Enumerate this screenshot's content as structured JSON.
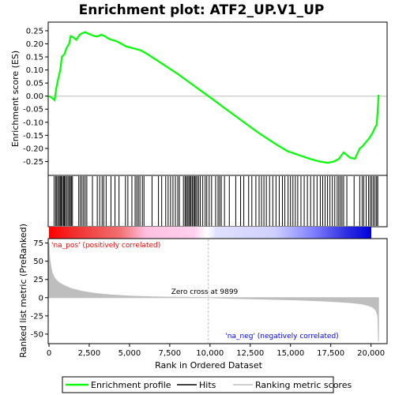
{
  "chart_data": {
    "type": "line",
    "title": "Enrichment plot: ATF2_UP.V1_UP",
    "xlabel": "Rank in Ordered Dataset",
    "ylabel_top": "Enrichment score (ES)",
    "ylabel_bottom": "Ranked list metric (PreRanked)",
    "x_range": [
      0,
      21000
    ],
    "es_ylim": [
      -0.3,
      0.28
    ],
    "metric_ylim": [
      -62,
      80
    ],
    "es_ticks": [
      "0.25",
      "0.20",
      "0.15",
      "0.10",
      "0.05",
      "0.00",
      "-0.05",
      "-0.10",
      "-0.15",
      "-0.20",
      "-0.25"
    ],
    "es_tick_values": [
      0.25,
      0.2,
      0.15,
      0.1,
      0.05,
      0.0,
      -0.05,
      -0.1,
      -0.15,
      -0.2,
      -0.25
    ],
    "metric_ticks": [
      "75",
      "50",
      "25",
      "0",
      "-25",
      "-50"
    ],
    "metric_tick_values": [
      75,
      50,
      25,
      0,
      -25,
      -50
    ],
    "x_ticks": [
      "0",
      "2,500",
      "5,000",
      "7,500",
      "10,000",
      "12,500",
      "15,000",
      "17,500",
      "20,000"
    ],
    "x_tick_values": [
      0,
      2500,
      5000,
      7500,
      10000,
      12500,
      15000,
      17500,
      20000
    ],
    "enrichment_profile": {
      "x": [
        0,
        150,
        350,
        450,
        550,
        700,
        800,
        950,
        1100,
        1250,
        1350,
        1500,
        1700,
        1900,
        2050,
        2250,
        2400,
        2600,
        2800,
        3000,
        3250,
        3450,
        3700,
        3900,
        4200,
        4500,
        4800,
        5100,
        5400,
        5700,
        6000,
        7000,
        8000,
        9000,
        9899,
        11000,
        12000,
        13000,
        14000,
        14800,
        15500,
        16200,
        16800,
        17300,
        17700,
        18000,
        18300,
        18500,
        18700,
        19000,
        19300,
        19500,
        19700,
        19900,
        20100,
        20250,
        20350,
        20420,
        20470
      ],
      "y": [
        0.0,
        -0.005,
        -0.015,
        0.03,
        0.06,
        0.1,
        0.15,
        0.16,
        0.185,
        0.2,
        0.23,
        0.225,
        0.215,
        0.235,
        0.24,
        0.245,
        0.24,
        0.235,
        0.23,
        0.228,
        0.235,
        0.23,
        0.22,
        0.215,
        0.21,
        0.2,
        0.19,
        0.185,
        0.18,
        0.175,
        0.165,
        0.125,
        0.085,
        0.04,
        0.0,
        -0.05,
        -0.095,
        -0.14,
        -0.18,
        -0.21,
        -0.225,
        -0.24,
        -0.25,
        -0.255,
        -0.25,
        -0.24,
        -0.215,
        -0.225,
        -0.235,
        -0.24,
        -0.2,
        -0.19,
        -0.175,
        -0.16,
        -0.14,
        -0.12,
        -0.11,
        -0.05,
        0.005
      ]
    },
    "metric_profile": {
      "x": [
        0,
        40,
        100,
        200,
        350,
        500,
        700,
        1000,
        1400,
        2000,
        2800,
        3800,
        5000,
        6500,
        8000,
        9000,
        9899,
        11000,
        12500,
        14000,
        15500,
        17000,
        18000,
        18800,
        19400,
        19800,
        20100,
        20300,
        20420,
        20470
      ],
      "y": [
        75,
        55,
        45,
        34,
        27,
        23,
        19.5,
        16,
        12.5,
        9,
        6,
        3.8,
        2.2,
        1.2,
        0.6,
        0.3,
        0,
        -0.8,
        -1.6,
        -2.4,
        -3.3,
        -4.5,
        -5.7,
        -7,
        -8.5,
        -10.5,
        -13,
        -17,
        -25,
        -60
      ]
    },
    "hits_positive_side": [
      320,
      420,
      480,
      560,
      640,
      700,
      760,
      830,
      900,
      950,
      1010,
      1100,
      1180,
      1260,
      1330,
      1390,
      1460,
      1850,
      1950,
      2050,
      2150,
      2250,
      2350,
      2700,
      3000,
      3150,
      3300,
      3400,
      3550,
      3850,
      4100,
      4350,
      4750,
      4900,
      5150,
      5350,
      5450,
      5550,
      5650,
      5800,
      5900
    ],
    "hits_middle": [
      6400,
      6800,
      7000,
      7250,
      7400,
      7550,
      7700,
      7850,
      8000,
      8100,
      8350,
      8450,
      8520,
      8600,
      8680,
      8750,
      8820,
      8900,
      8980,
      9050,
      9120,
      9200,
      9300,
      9400,
      9550,
      9700,
      9800,
      9950,
      10100
    ],
    "hits_negative_side": [
      10350,
      10500,
      10600,
      10700,
      10900,
      11200,
      11600,
      11900,
      12100,
      12400,
      12600,
      12850,
      13050,
      13200,
      13350,
      13500,
      13700,
      13900,
      14100,
      14300,
      14500,
      14650,
      14850,
      15000,
      15150,
      15300,
      15450,
      15650,
      15850,
      16050,
      16250,
      16450,
      16650,
      16850,
      17000,
      17150,
      17300,
      17450,
      17600,
      17750,
      17900,
      18000,
      18100,
      18200,
      18300,
      18500,
      18950,
      19300,
      19450,
      19550,
      19700,
      19850,
      19950,
      20050,
      20150,
      20250,
      20350,
      20420
    ],
    "zero_cross_rank": 9899,
    "annotations": {
      "zero_cross": "Zero cross at 9899",
      "pos_label": "'na_pos' (positively correlated)",
      "neg_label": "'na_neg' (negatively correlated)"
    },
    "legend": {
      "enrichment": "Enrichment profile",
      "hits": "Hits",
      "ranking": "Ranking metric scores"
    },
    "colors": {
      "enrichment_line": "#00ff00",
      "hit": "#000000",
      "metric_fill": "#bebebe",
      "pos_label": "#ff0000",
      "neg_label": "#0000ff",
      "zero_line": "#bebebe",
      "gradient_red": "#ff0000",
      "gradient_white": "#ffffff",
      "gradient_blue": "#0000ff"
    }
  }
}
